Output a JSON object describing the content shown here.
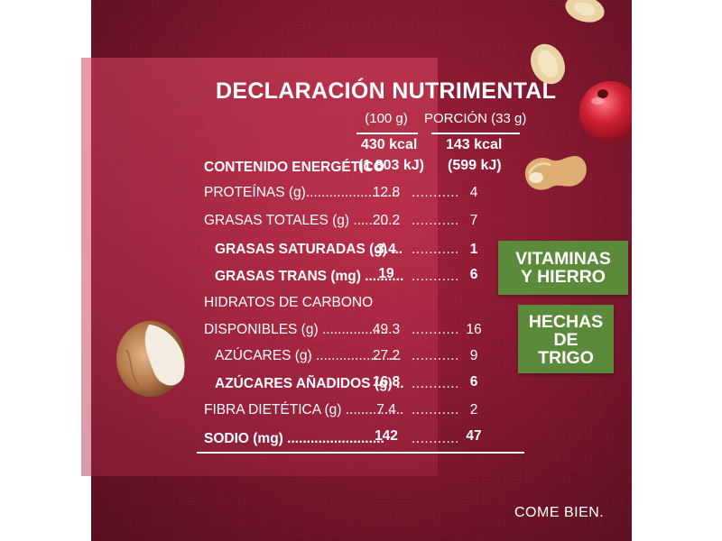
{
  "header": {
    "title": "DECLARACIÓN NUTRIMENTAL",
    "col_per_100": "(100 g)",
    "col_per_portion": "PORCIÓN (33 g)"
  },
  "energy": {
    "label": "CONTENIDO ENERGÉTICO",
    "kcal_100": "430 kcal",
    "kj_100": "(1 803 kJ)",
    "kcal_portion": "143 kcal",
    "kj_portion": "(599 kJ)"
  },
  "rows": [
    {
      "label": "PROTEÍNAS (g)........................",
      "v100": "12.8",
      "dots": "...........",
      "portion": "4"
    },
    {
      "label": "GRASAS TOTALES (g) ............",
      "v100": "20.2",
      "dots": "...........",
      "portion": "7"
    },
    {
      "label": "GRASAS SATURADAS (g) ...",
      "v100": "3.4",
      "dots": "...........",
      "portion": "1"
    },
    {
      "label": "GRASAS TRANS (mg) ..........",
      "v100": "19",
      "dots": "...........",
      "portion": "6"
    },
    {
      "label": "HIDRATOS DE CARBONO"
    },
    {
      "label": "DISPONIBLES (g) ..................",
      "v100": "49.3",
      "dots": "...........",
      "portion": "16"
    },
    {
      "label": "AZÚCARES (g) ......................",
      "v100": "27.2",
      "dots": "...........",
      "portion": "9"
    },
    {
      "label": "AZÚCARES AÑADIDOS (g) ..",
      "v100": "16.8",
      "dots": "...........",
      "portion": "6"
    },
    {
      "label": "FIBRA DIETÉTICA (g) ...............",
      "v100": "7.4",
      "dots": "...........",
      "portion": "2"
    },
    {
      "label": "SODIO (mg) .........................",
      "v100": "142",
      "dots": "...........",
      "portion": "47"
    }
  ],
  "badges": {
    "vitaminas_line1": "VITAMINAS",
    "vitaminas_line2": "Y HIERRO",
    "trigo_line1": "HECHAS",
    "trigo_line2": "DE",
    "trigo_line3": "TRIGO"
  },
  "footer": "COME BIEN.",
  "colors": {
    "background": "#8c1a33",
    "panel": "#d7465f",
    "badge": "#5b8b3a",
    "text": "#ffffff"
  },
  "icons": [
    "hazelnut-icon",
    "peanut-icon",
    "oat-flake-icon",
    "cranberry-icon"
  ]
}
